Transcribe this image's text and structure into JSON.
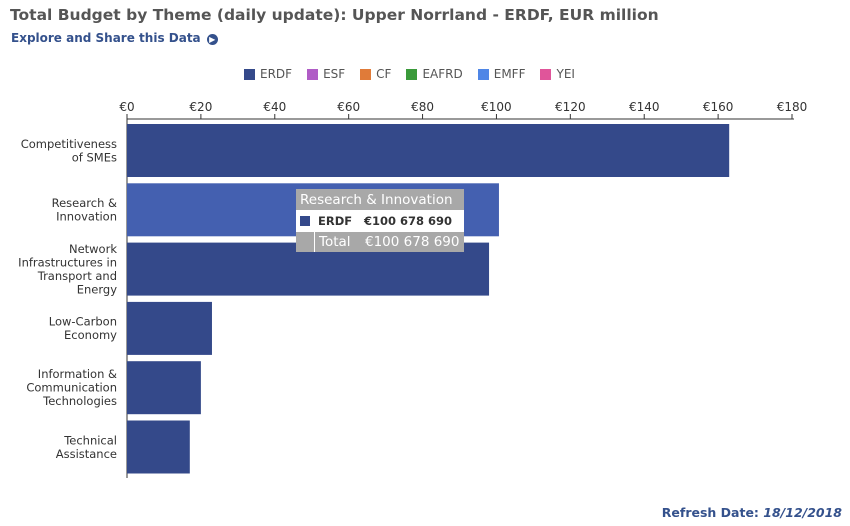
{
  "title": "Total Budget by Theme (daily update): Upper Norrland - ERDF, EUR million",
  "explore_link": "Explore and Share this Data",
  "explore_icon": "chevron-right-circle-icon",
  "legend": [
    {
      "name": "ERDF",
      "color": "#34498a"
    },
    {
      "name": "ESF",
      "color": "#b05cc6"
    },
    {
      "name": "CF",
      "color": "#e07b39"
    },
    {
      "name": "EAFRD",
      "color": "#3a9a3a"
    },
    {
      "name": "EMFF",
      "color": "#4f86e6"
    },
    {
      "name": "YEI",
      "color": "#e0559a"
    }
  ],
  "chart_data": {
    "type": "bar",
    "orientation": "horizontal",
    "categories": [
      [
        "Competitiveness",
        "of SMEs"
      ],
      [
        "Research &",
        "Innovation"
      ],
      [
        "Network",
        "Infrastructures in",
        "Transport and",
        "Energy"
      ],
      [
        "Low-Carbon",
        "Economy"
      ],
      [
        "Information &",
        "Communication",
        "Technologies"
      ],
      [
        "Technical",
        "Assistance"
      ]
    ],
    "series": [
      {
        "name": "ERDF",
        "color": "#34498a",
        "highlight_color": "#4460b0",
        "values": [
          163,
          100.68,
          98,
          23,
          20,
          17
        ]
      }
    ],
    "xlim": [
      0,
      180
    ],
    "ticks": [
      0,
      20,
      40,
      60,
      80,
      100,
      120,
      140,
      160,
      180
    ],
    "tick_labels": [
      "€0",
      "€20",
      "€40",
      "€60",
      "€80",
      "€100",
      "€120",
      "€140",
      "€160",
      "€180"
    ],
    "highlighted_index": 1,
    "axis_position": "top"
  },
  "tooltip": {
    "title": "Research & Innovation",
    "row_label": "ERDF",
    "row_value": "€100 678 690",
    "total_label": "Total",
    "total_value": "€100 678 690"
  },
  "refresh": {
    "label": "Refresh Date:",
    "date": "18/12/2018"
  }
}
